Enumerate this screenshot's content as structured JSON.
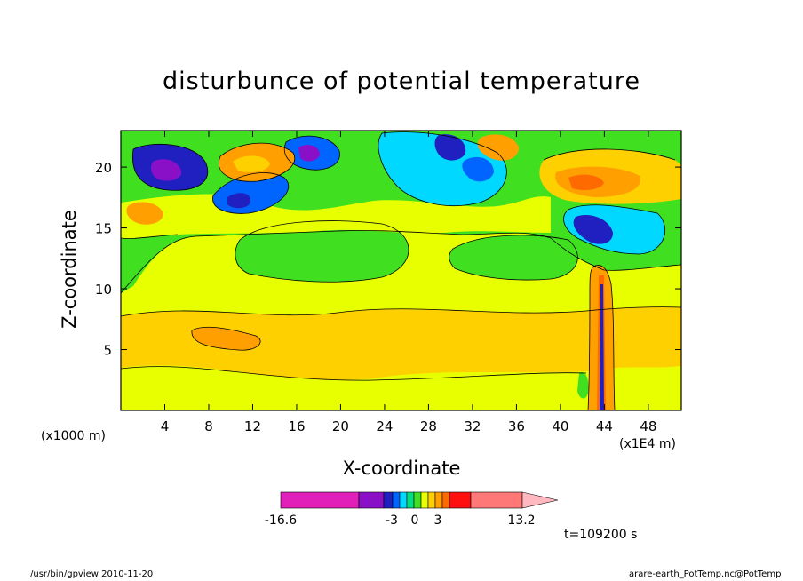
{
  "chart_data": {
    "type": "contour",
    "title": "disturbunce of potential temperature",
    "xlabel": "X-coordinate",
    "ylabel": "Z-coordinate",
    "x_unit_left": "(x1000 m)",
    "x_unit_right": "(x1E4 m)",
    "x_ticks": [
      4,
      8,
      12,
      16,
      20,
      24,
      28,
      32,
      36,
      40,
      44,
      48
    ],
    "y_ticks": [
      5,
      10,
      15,
      20
    ],
    "xlim": [
      0,
      51
    ],
    "ylim": [
      0,
      23
    ],
    "colorbar": {
      "labels": [
        "-16.6",
        "-3",
        "0",
        "3",
        "13.2"
      ],
      "colors": [
        "#e020b8",
        "#8a10c8",
        "#2020c0",
        "#0064ff",
        "#00d8ff",
        "#00e080",
        "#40e020",
        "#e8ff00",
        "#ffd000",
        "#ffa000",
        "#ff6a00",
        "#ff1010",
        "#ff7878",
        "#ffb8c0"
      ]
    },
    "time_label": "t=109200 s",
    "regions": [
      {
        "level": "positive-warm",
        "x": 26,
        "z": 6
      },
      {
        "level": "positive-strong",
        "x": 9,
        "z": 6
      },
      {
        "level": "negative-strong",
        "x": 4,
        "z": 21
      },
      {
        "level": "negative-strong",
        "x": 17,
        "z": 21
      },
      {
        "level": "negative",
        "x": 43,
        "z": 15
      },
      {
        "level": "positive-strong",
        "x": 42,
        "z": 18
      }
    ]
  },
  "footer": {
    "left": "/usr/bin/gpview   2010-11-20",
    "right": "arare-earth_PotTemp.nc@PotTemp"
  },
  "colors": {
    "background": "#ffffff",
    "frame": "#000000"
  }
}
